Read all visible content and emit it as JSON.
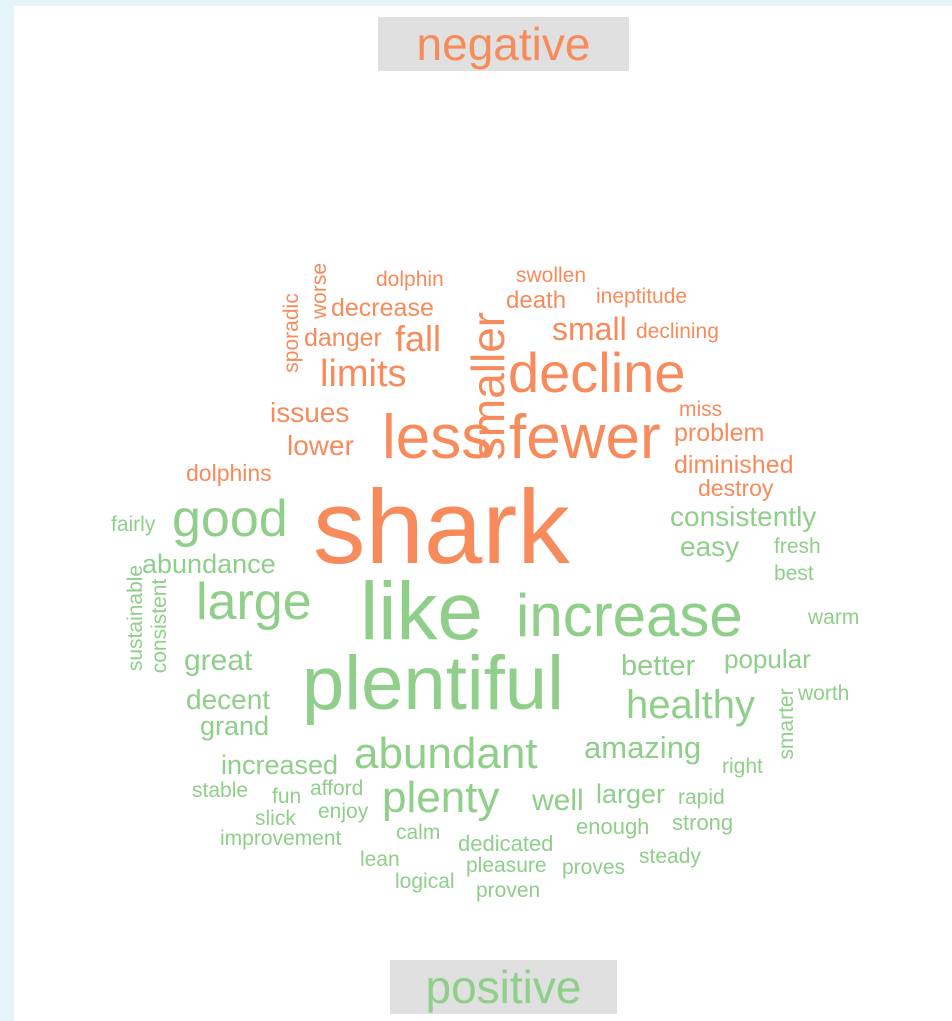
{
  "chart_data": {
    "type": "wordcloud",
    "colors": {
      "negative": "#f78b5b",
      "positive": "#8fcf8a"
    },
    "categories": [
      "negative",
      "positive"
    ],
    "words": [
      {
        "text": "shark",
        "category": "negative",
        "size": 105,
        "rotated": false
      },
      {
        "text": "fewer",
        "category": "negative",
        "size": 62,
        "rotated": false
      },
      {
        "text": "less",
        "category": "negative",
        "size": 62,
        "rotated": false
      },
      {
        "text": "decline",
        "category": "negative",
        "size": 56,
        "rotated": false
      },
      {
        "text": "smaller",
        "category": "negative",
        "size": 46,
        "rotated": true
      },
      {
        "text": "limits",
        "category": "negative",
        "size": 38,
        "rotated": false
      },
      {
        "text": "fall",
        "category": "negative",
        "size": 36,
        "rotated": false
      },
      {
        "text": "small",
        "category": "negative",
        "size": 32,
        "rotated": false
      },
      {
        "text": "issues",
        "category": "negative",
        "size": 28,
        "rotated": false
      },
      {
        "text": "lower",
        "category": "negative",
        "size": 28,
        "rotated": false
      },
      {
        "text": "decrease",
        "category": "negative",
        "size": 25,
        "rotated": false
      },
      {
        "text": "danger",
        "category": "negative",
        "size": 25,
        "rotated": false
      },
      {
        "text": "problem",
        "category": "negative",
        "size": 25,
        "rotated": false
      },
      {
        "text": "diminished",
        "category": "negative",
        "size": 25,
        "rotated": false
      },
      {
        "text": "death",
        "category": "negative",
        "size": 24,
        "rotated": false
      },
      {
        "text": "dolphins",
        "category": "negative",
        "size": 23,
        "rotated": false
      },
      {
        "text": "destroy",
        "category": "negative",
        "size": 23,
        "rotated": false
      },
      {
        "text": "dolphin",
        "category": "negative",
        "size": 21,
        "rotated": false
      },
      {
        "text": "swollen",
        "category": "negative",
        "size": 21,
        "rotated": false
      },
      {
        "text": "ineptitude",
        "category": "negative",
        "size": 21,
        "rotated": false
      },
      {
        "text": "declining",
        "category": "negative",
        "size": 21,
        "rotated": false
      },
      {
        "text": "miss",
        "category": "negative",
        "size": 21,
        "rotated": false
      },
      {
        "text": "worse",
        "category": "negative",
        "size": 21,
        "rotated": true
      },
      {
        "text": "sporadic",
        "category": "negative",
        "size": 21,
        "rotated": true
      },
      {
        "text": "like",
        "category": "positive",
        "size": 82,
        "rotated": false
      },
      {
        "text": "plentiful",
        "category": "positive",
        "size": 76,
        "rotated": false
      },
      {
        "text": "increase",
        "category": "positive",
        "size": 60,
        "rotated": false
      },
      {
        "text": "good",
        "category": "positive",
        "size": 52,
        "rotated": false
      },
      {
        "text": "large",
        "category": "positive",
        "size": 52,
        "rotated": false
      },
      {
        "text": "abundant",
        "category": "positive",
        "size": 44,
        "rotated": false
      },
      {
        "text": "plenty",
        "category": "positive",
        "size": 44,
        "rotated": false
      },
      {
        "text": "healthy",
        "category": "positive",
        "size": 40,
        "rotated": false
      },
      {
        "text": "amazing",
        "category": "positive",
        "size": 31,
        "rotated": false
      },
      {
        "text": "great",
        "category": "positive",
        "size": 30,
        "rotated": false
      },
      {
        "text": "decent",
        "category": "positive",
        "size": 28,
        "rotated": false
      },
      {
        "text": "well",
        "category": "positive",
        "size": 30,
        "rotated": false
      },
      {
        "text": "better",
        "category": "positive",
        "size": 29,
        "rotated": false
      },
      {
        "text": "consistently",
        "category": "positive",
        "size": 28,
        "rotated": false
      },
      {
        "text": "easy",
        "category": "positive",
        "size": 28,
        "rotated": false
      },
      {
        "text": "abundance",
        "category": "positive",
        "size": 27,
        "rotated": false
      },
      {
        "text": "grand",
        "category": "positive",
        "size": 27,
        "rotated": false
      },
      {
        "text": "increased",
        "category": "positive",
        "size": 27,
        "rotated": false
      },
      {
        "text": "larger",
        "category": "positive",
        "size": 27,
        "rotated": false
      },
      {
        "text": "popular",
        "category": "positive",
        "size": 26,
        "rotated": false
      },
      {
        "text": "fairly",
        "category": "positive",
        "size": 21,
        "rotated": false
      },
      {
        "text": "fresh",
        "category": "positive",
        "size": 21,
        "rotated": false
      },
      {
        "text": "best",
        "category": "positive",
        "size": 21,
        "rotated": false
      },
      {
        "text": "warm",
        "category": "positive",
        "size": 21,
        "rotated": false
      },
      {
        "text": "worth",
        "category": "positive",
        "size": 21,
        "rotated": false
      },
      {
        "text": "right",
        "category": "positive",
        "size": 21,
        "rotated": false
      },
      {
        "text": "stable",
        "category": "positive",
        "size": 21,
        "rotated": false
      },
      {
        "text": "fun",
        "category": "positive",
        "size": 21,
        "rotated": false
      },
      {
        "text": "afford",
        "category": "positive",
        "size": 21,
        "rotated": false
      },
      {
        "text": "slick",
        "category": "positive",
        "size": 21,
        "rotated": false
      },
      {
        "text": "enjoy",
        "category": "positive",
        "size": 21,
        "rotated": false
      },
      {
        "text": "rapid",
        "category": "positive",
        "size": 21,
        "rotated": false
      },
      {
        "text": "enough",
        "category": "positive",
        "size": 22,
        "rotated": false
      },
      {
        "text": "strong",
        "category": "positive",
        "size": 22,
        "rotated": false
      },
      {
        "text": "improvement",
        "category": "positive",
        "size": 21,
        "rotated": false
      },
      {
        "text": "calm",
        "category": "positive",
        "size": 21,
        "rotated": false
      },
      {
        "text": "dedicated",
        "category": "positive",
        "size": 22,
        "rotated": false
      },
      {
        "text": "lean",
        "category": "positive",
        "size": 21,
        "rotated": false
      },
      {
        "text": "pleasure",
        "category": "positive",
        "size": 21,
        "rotated": false
      },
      {
        "text": "proves",
        "category": "positive",
        "size": 21,
        "rotated": false
      },
      {
        "text": "steady",
        "category": "positive",
        "size": 21,
        "rotated": false
      },
      {
        "text": "logical",
        "category": "positive",
        "size": 21,
        "rotated": false
      },
      {
        "text": "proven",
        "category": "positive",
        "size": 21,
        "rotated": false
      },
      {
        "text": "sustainable",
        "category": "positive",
        "size": 21,
        "rotated": true
      },
      {
        "text": "consistent",
        "category": "positive",
        "size": 21,
        "rotated": true
      },
      {
        "text": "smarter",
        "category": "positive",
        "size": 21,
        "rotated": true
      }
    ]
  }
}
